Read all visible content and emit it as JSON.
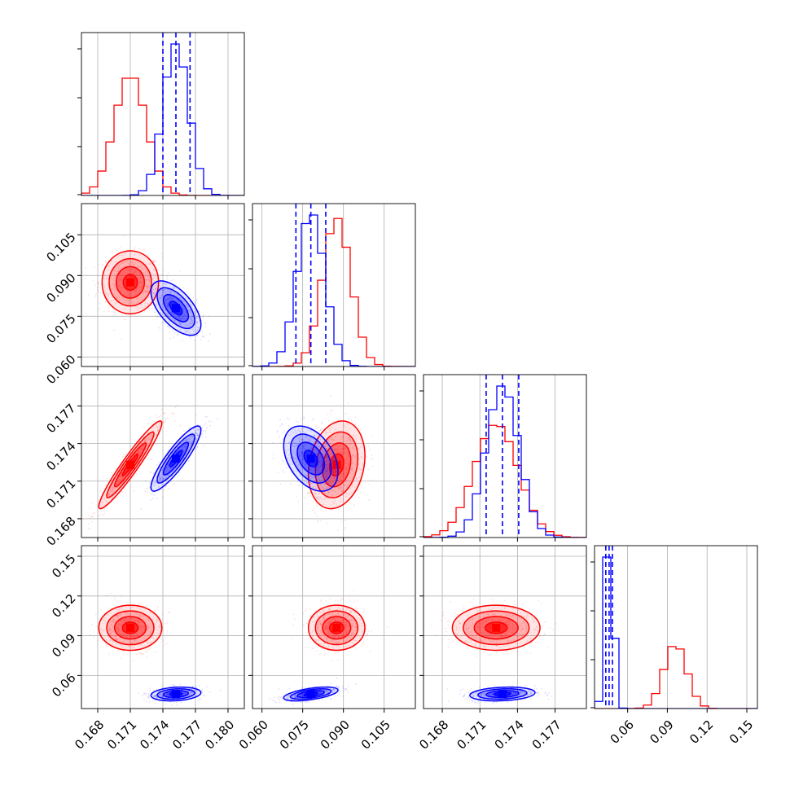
{
  "figure": {
    "type": "corner-plot",
    "colors": {
      "series_a": "#ff0000",
      "series_b": "#0000ff",
      "grid": "#b0b0b0",
      "axis": "#000000"
    }
  },
  "chart_data": {
    "type": "corner",
    "n_params": 4,
    "params": [
      {
        "range": [
          0.1665,
          0.1815
        ],
        "ticks": [
          0.168,
          0.171,
          0.174,
          0.177,
          0.18
        ],
        "tick_labels": [
          "0.168",
          "0.171",
          "0.174",
          "0.177",
          "0.180"
        ]
      },
      {
        "range": [
          0.0565,
          0.1165
        ],
        "ticks": [
          0.06,
          0.075,
          0.09,
          0.105
        ],
        "tick_labels": [
          "0.060",
          "0.075",
          "0.090",
          "0.105"
        ]
      },
      {
        "range": [
          0.1665,
          0.1795
        ],
        "ticks": [
          0.168,
          0.171,
          0.174,
          0.177
        ],
        "tick_labels": [
          "0.168",
          "0.171",
          "0.174",
          "0.177"
        ]
      },
      {
        "range": [
          0.035,
          0.158
        ],
        "ticks": [
          0.06,
          0.09,
          0.12,
          0.15
        ],
        "tick_labels": [
          "0.06",
          "0.09",
          "0.12",
          "0.15"
        ]
      }
    ],
    "series": [
      {
        "color": "#ff0000",
        "mean": [
          0.171,
          0.0875,
          0.1723,
          0.096
        ],
        "std": [
          0.00145,
          0.0052,
          0.00175,
          0.0085
        ],
        "corr": [
          [
            1,
            0,
            0.95,
            0
          ],
          [
            0,
            1,
            0.2,
            0
          ],
          [
            0.95,
            0.2,
            1,
            0
          ],
          [
            0,
            0,
            0,
            1
          ]
        ]
      },
      {
        "color": "#0000ff",
        "mean": [
          0.1752,
          0.078,
          0.1728,
          0.046
        ],
        "std": [
          0.00115,
          0.005,
          0.0013,
          0.0026
        ],
        "corr": [
          [
            1,
            -0.6,
            0.88,
            0.2
          ],
          [
            -0.6,
            1,
            -0.4,
            0.55
          ],
          [
            0.88,
            -0.4,
            1,
            0.2
          ],
          [
            0.2,
            0.55,
            0.2,
            1
          ]
        ]
      }
    ],
    "quantile_lines": {
      "color": "#0000ff",
      "values": [
        [
          0.174,
          0.1752,
          0.1765
        ],
        [
          0.0725,
          0.078,
          0.0835
        ],
        [
          0.1715,
          0.1728,
          0.1741
        ],
        [
          0.0435,
          0.046,
          0.0485
        ]
      ]
    },
    "grid": true
  }
}
